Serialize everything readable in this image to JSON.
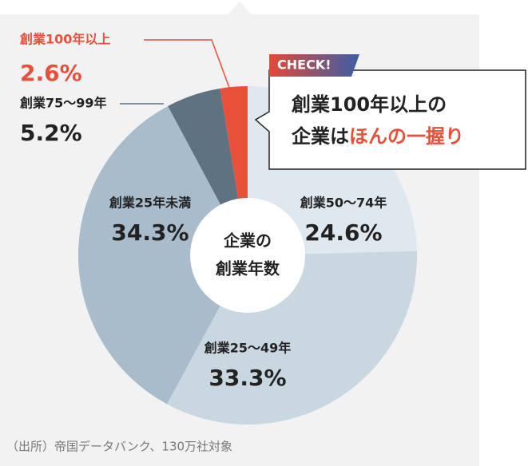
{
  "chart_data": {
    "type": "pie",
    "title": [
      "企業の",
      "創業年数"
    ],
    "categories": [
      "創業50～74年",
      "創業25～49年",
      "創業25年未満",
      "創業75～99年",
      "創業100年以上"
    ],
    "values": [
      24.6,
      33.3,
      34.3,
      5.2,
      2.6
    ],
    "value_labels": [
      "24.6%",
      "33.3%",
      "34.3%",
      "5.2%",
      "2.6%"
    ],
    "colors": [
      "#dfe8ef",
      "#c9d7e1",
      "#a8bccb",
      "#5e7282",
      "#e8503a"
    ],
    "label_colors": [
      "#222222",
      "#222222",
      "#222222",
      "#222222",
      "#e8503a"
    ]
  },
  "callout": {
    "tag": "CHECK!",
    "line1": "創業100年以上の",
    "line2_plain": "企業は",
    "line2_accent": "ほんの一握り"
  },
  "source": "（出所）帝国データバンク、130万社対象"
}
